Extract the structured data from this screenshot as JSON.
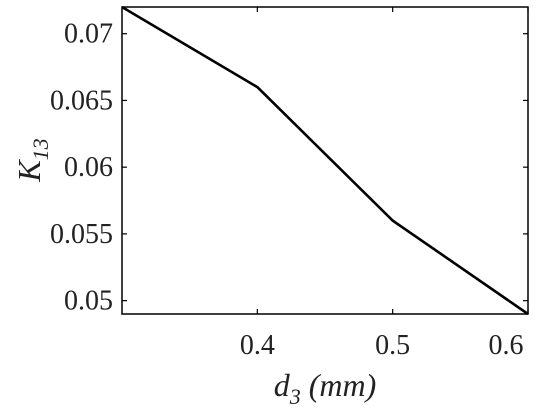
{
  "chart_data": {
    "type": "line",
    "title": "",
    "xlabel": {
      "base": "d",
      "sub": "3",
      "suffix": " (mm)"
    },
    "ylabel": {
      "base": "K",
      "sub": "13"
    },
    "xlim": [
      0.3,
      0.6
    ],
    "ylim": [
      0.049,
      0.072
    ],
    "x_ticks": [
      0.4,
      0.5,
      0.6
    ],
    "x_tick_labels": [
      "0.4",
      "0.5",
      "0.6"
    ],
    "y_ticks": [
      0.05,
      0.055,
      0.06,
      0.065,
      0.07
    ],
    "y_tick_labels": [
      "0.05",
      "0.055",
      "0.06",
      "0.065",
      "0.07"
    ],
    "grid": false,
    "series": [
      {
        "x": [
          0.3,
          0.4,
          0.5,
          0.6
        ],
        "y": [
          0.072,
          0.066,
          0.056,
          0.049
        ],
        "color": "#000000"
      }
    ]
  }
}
